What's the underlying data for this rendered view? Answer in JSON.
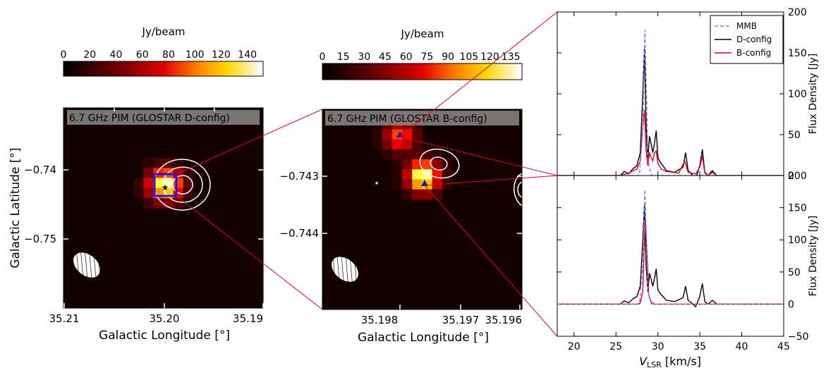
{
  "panel_left": {
    "cbar_title": "Jy/beam",
    "cbar_ticks": [
      "0",
      "20",
      "40",
      "60",
      "80",
      "100",
      "120",
      "140"
    ],
    "cbar_range": [
      0,
      152
    ],
    "label": "6.7 GHz PIM (GLOSTAR D-config)",
    "xlabel": "Galactic Longitude [°]",
    "ylabel": "Galactic Latitude [°]",
    "xticks": [
      "35.21",
      "35.20",
      "35.19"
    ],
    "yticks": [
      "−0.74",
      "−0.75"
    ],
    "peak_jy_per_beam": 152
  },
  "panel_mid": {
    "cbar_title": "Jy/beam",
    "cbar_ticks": [
      "0",
      "15",
      "30",
      "45",
      "60",
      "75",
      "90",
      "105",
      "120",
      "135"
    ],
    "cbar_range": [
      0,
      143
    ],
    "label": "6.7 GHz PIM (GLOSTAR B-config)",
    "xlabel": "Galactic Longitude [°]",
    "xticks": [
      "35.198",
      "35.197",
      "35.196"
    ],
    "yticks": [
      "−0.743",
      "−0.744"
    ],
    "peak_jy_per_beam": 135
  },
  "chart_data": {
    "type": "line",
    "xlabel": "V_LSR [km/s]",
    "xlabel_main": "V",
    "xlabel_sub": "LSR",
    "xlabel_unit": " [km/s]",
    "ylabel": "Flux Density [Jy]",
    "xlim": [
      18,
      45
    ],
    "xticks": [
      "20",
      "25",
      "30",
      "35",
      "40",
      "45"
    ],
    "ylim_top": [
      0,
      200
    ],
    "ylim_bottom": [
      -50,
      200
    ],
    "yticks_top": [
      "0",
      "50",
      "100",
      "150",
      "200"
    ],
    "yticks_bottom": [
      "−50",
      "0",
      "50",
      "100",
      "150",
      "200"
    ],
    "legend": [
      {
        "name": "MMB",
        "color": "#7b7bf2",
        "dash": true
      },
      {
        "name": "D-config",
        "color": "#000000",
        "dash": false
      },
      {
        "name": "B-config",
        "color": "#e8001c",
        "dash": false
      }
    ],
    "legend_position": "top-right",
    "panels": [
      {
        "series": [
          {
            "name": "MMB",
            "color": "#7b7bf2",
            "dash": true,
            "x": [
              18,
              27.8,
              28.2,
              28.45,
              28.6,
              28.8,
              29.2,
              45
            ],
            "y": [
              0,
              0,
              60,
              178,
              120,
              20,
              0,
              0
            ]
          },
          {
            "name": "D-config",
            "color": "#000000",
            "x": [
              18,
              25.5,
              26.0,
              26.5,
              27.0,
              27.5,
              27.9,
              28.2,
              28.4,
              28.6,
              28.8,
              29.0,
              29.2,
              29.4,
              29.6,
              29.8,
              30.0,
              30.3,
              30.6,
              31.0,
              32.0,
              33.0,
              33.3,
              33.6,
              34.0,
              34.5,
              35.0,
              35.3,
              35.6,
              36.0,
              36.5,
              37.0,
              45
            ],
            "y": [
              0,
              0,
              5,
              2,
              8,
              12,
              28,
              100,
              155,
              60,
              20,
              48,
              38,
              28,
              40,
              55,
              22,
              16,
              12,
              6,
              4,
              10,
              28,
              6,
              2,
              -4,
              12,
              32,
              4,
              0,
              6,
              0,
              0
            ]
          },
          {
            "name": "B-config",
            "color": "#e8001c",
            "x": [
              18,
              25.5,
              26.5,
              27.5,
              27.9,
              28.2,
              28.4,
              28.6,
              28.8,
              29.0,
              29.2,
              29.4,
              29.6,
              29.8,
              30.0,
              30.4,
              31.0,
              32.5,
              33.2,
              33.6,
              34.5,
              35.0,
              35.3,
              35.6,
              36.0,
              36.5,
              37.0,
              45
            ],
            "y": [
              0,
              0,
              3,
              8,
              18,
              60,
              80,
              30,
              12,
              28,
              22,
              18,
              28,
              30,
              15,
              8,
              5,
              3,
              18,
              4,
              2,
              10,
              24,
              3,
              0,
              4,
              0,
              0
            ]
          }
        ]
      },
      {
        "series": [
          {
            "name": "MMB",
            "color": "#7b7bf2",
            "dash": true,
            "x": [
              18,
              27.8,
              28.2,
              28.45,
              28.6,
              28.8,
              29.2,
              45
            ],
            "y": [
              0,
              0,
              60,
              178,
              120,
              20,
              0,
              0
            ]
          },
          {
            "name": "D-config",
            "color": "#000000",
            "x": [
              18,
              25.5,
              26.0,
              26.5,
              27.0,
              27.5,
              27.9,
              28.2,
              28.4,
              28.6,
              28.8,
              29.0,
              29.2,
              29.4,
              29.6,
              29.8,
              30.0,
              30.3,
              30.6,
              31.0,
              32.0,
              33.0,
              33.3,
              33.6,
              34.0,
              34.5,
              35.0,
              35.3,
              35.6,
              36.0,
              36.5,
              37.0,
              45
            ],
            "y": [
              0,
              0,
              5,
              2,
              8,
              12,
              28,
              100,
              155,
              60,
              20,
              48,
              38,
              28,
              40,
              55,
              22,
              16,
              12,
              6,
              4,
              10,
              28,
              6,
              2,
              -4,
              12,
              32,
              4,
              0,
              6,
              0,
              0
            ]
          },
          {
            "name": "B-config",
            "color": "#e8001c",
            "x": [
              18,
              27.5,
              27.9,
              28.2,
              28.4,
              28.5,
              28.7,
              28.9,
              29.2,
              29.6,
              45
            ],
            "y": [
              0,
              0,
              2,
              20,
              100,
              130,
              80,
              15,
              3,
              0,
              0
            ]
          }
        ]
      }
    ]
  }
}
